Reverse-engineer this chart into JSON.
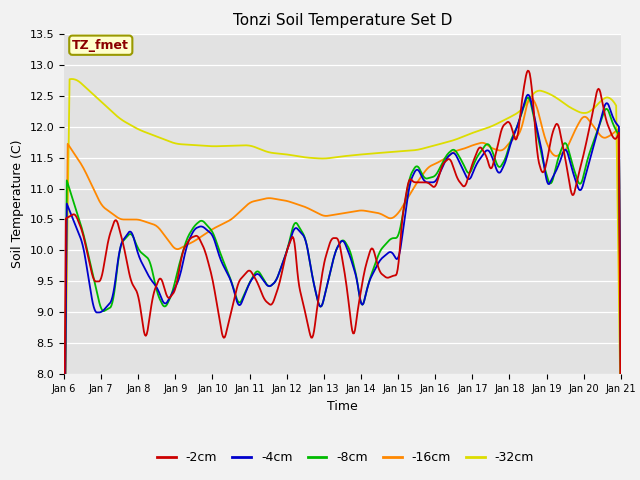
{
  "title": "Tonzi Soil Temperature Set D",
  "xlabel": "Time",
  "ylabel": "Soil Temperature (C)",
  "ylim": [
    8.0,
    13.5
  ],
  "label_text": "TZ_fmet",
  "colors": {
    "-2cm": "#cc0000",
    "-4cm": "#0000cc",
    "-8cm": "#00bb00",
    "-16cm": "#ff8800",
    "-32cm": "#dddd00"
  },
  "legend_labels": [
    "-2cm",
    "-4cm",
    "-8cm",
    "-16cm",
    "-32cm"
  ],
  "fig_bg": "#f0f0f0",
  "plot_bg": "#e0e0e0",
  "yticks": [
    8.0,
    8.5,
    9.0,
    9.5,
    10.0,
    10.5,
    11.0,
    11.5,
    12.0,
    12.5,
    13.0,
    13.5
  ]
}
